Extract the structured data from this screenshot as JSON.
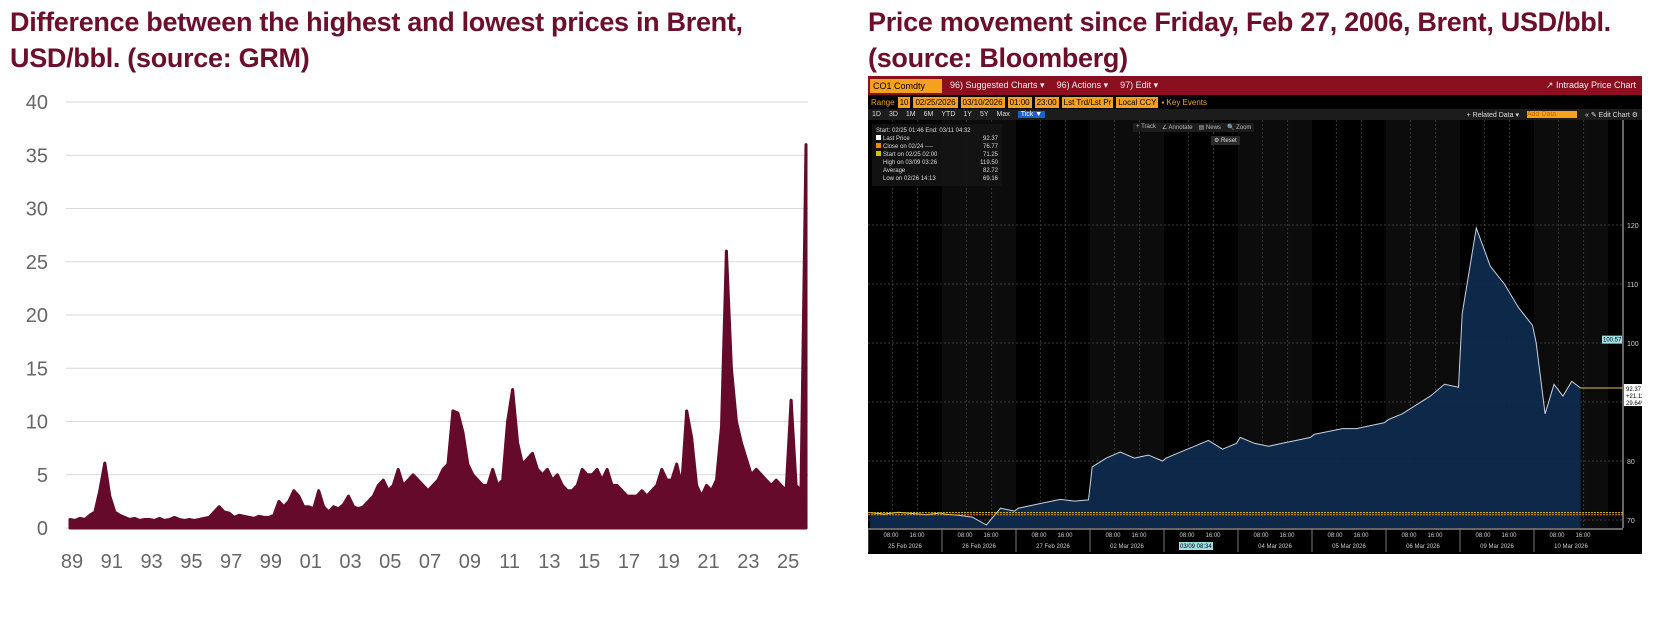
{
  "chart_data": [
    {
      "type": "area",
      "title": "Difference between the highest and lowest prices in Brent, USD/bbl. (source: GRM)",
      "xlabel": "",
      "ylabel": "",
      "ylim": [
        0,
        40
      ],
      "yticks": [
        0,
        5,
        10,
        15,
        20,
        25,
        30,
        35,
        40
      ],
      "xticks": [
        "89",
        "91",
        "93",
        "95",
        "97",
        "99",
        "01",
        "03",
        "05",
        "07",
        "09",
        "11",
        "13",
        "15",
        "17",
        "19",
        "21",
        "23",
        "25"
      ],
      "xrange": [
        1989,
        2026.1
      ],
      "grid": "horizontal",
      "color": "#650a2a",
      "x_start": 1989,
      "x_step": 0.25,
      "values": [
        0.8,
        0.7,
        0.9,
        0.8,
        1.2,
        1.5,
        3.5,
        6.1,
        3.0,
        1.5,
        1.2,
        1.0,
        0.8,
        0.9,
        0.7,
        0.8,
        0.8,
        0.7,
        0.9,
        0.7,
        0.8,
        1.0,
        0.8,
        0.7,
        0.8,
        0.7,
        0.8,
        0.9,
        1.0,
        1.5,
        2.0,
        1.5,
        1.4,
        1.0,
        1.2,
        1.1,
        1.0,
        0.9,
        1.1,
        1.0,
        1.0,
        1.2,
        2.5,
        2.0,
        2.5,
        3.5,
        3.0,
        2.0,
        2.0,
        1.8,
        3.5,
        2.0,
        1.5,
        2.0,
        1.8,
        2.2,
        3.0,
        2.0,
        1.8,
        2.0,
        2.5,
        3.0,
        4.0,
        4.5,
        3.5,
        4.0,
        5.5,
        4.0,
        4.5,
        5.0,
        4.5,
        4.0,
        3.5,
        4.0,
        4.5,
        5.5,
        6.0,
        11.0,
        10.8,
        9.0,
        6.0,
        5.0,
        4.5,
        4.0,
        4.0,
        5.5,
        4.0,
        4.5,
        10.0,
        13.0,
        8.0,
        6.0,
        6.5,
        7.0,
        5.5,
        5.0,
        5.5,
        4.5,
        5.0,
        4.0,
        3.5,
        3.5,
        4.0,
        5.5,
        5.0,
        5.0,
        5.5,
        4.5,
        5.5,
        4.0,
        4.0,
        3.5,
        3.0,
        3.0,
        3.0,
        3.5,
        3.0,
        3.5,
        4.0,
        5.5,
        4.5,
        4.5,
        6.0,
        4.0,
        11.0,
        8.5,
        4.0,
        3.0,
        4.0,
        3.5,
        4.5,
        9.5,
        26.0,
        15.0,
        10.0,
        8.0,
        6.5,
        5.0,
        5.5,
        5.0,
        4.5,
        4.0,
        4.5,
        4.0,
        3.5,
        12.0,
        4.0,
        3.5,
        36.0
      ]
    },
    {
      "type": "line",
      "title": "Price movement since Friday, Feb 27, 2006, Brent, USD/bbl. (source: Bloomberg)",
      "ylim": [
        67,
        122
      ],
      "yticks": [
        70,
        80,
        100,
        110,
        120
      ],
      "categories": [
        "25 Feb 2026",
        "26 Feb 2026",
        "27 Feb 2026",
        "02 Mar 2026",
        "03 Mar 2026",
        "04 Mar 2026",
        "05 Mar 2026",
        "06 Mar 2026",
        "09 Mar 2026",
        "10 Mar 2026"
      ],
      "hour_ticks": [
        "08:00",
        "16:00"
      ],
      "colors": {
        "line": "#c9d2de",
        "fill": "#0f2a4d",
        "last": "#d9c23a"
      },
      "series": [
        [
          71.25,
          71.0,
          71.3,
          71.1,
          70.9,
          71.2
        ],
        [
          71.0,
          70.8,
          70.5,
          69.16,
          72.0,
          71.5
        ],
        [
          72.0,
          72.5,
          73.0,
          73.5,
          73.2,
          73.4
        ],
        [
          79.0,
          80.5,
          81.5,
          80.5,
          81.0,
          80.0
        ],
        [
          80.5,
          81.5,
          82.5,
          83.5,
          82.0,
          83.0
        ],
        [
          84.0,
          83.0,
          82.5,
          83.0,
          83.5,
          84.0
        ],
        [
          84.5,
          85.0,
          85.5,
          85.5,
          86.0,
          86.5
        ],
        [
          87.0,
          88.0,
          89.5,
          91.0,
          93.0,
          92.5
        ],
        [
          105.0,
          119.5,
          113.0,
          110.0,
          106.0,
          103.0
        ],
        [
          100.0,
          88.0,
          93.0,
          91.0,
          93.5,
          92.37
        ]
      ],
      "last_day_fraction": 0.6
    }
  ],
  "bloomberg": {
    "ticker": "CO1 Comdty",
    "menu": [
      "96) Suggested Charts ▾",
      "96) Actions ▾",
      "97) Edit ▾"
    ],
    "right_title": "Intraday Price Chart",
    "range_label": "Range",
    "range_fields": [
      "10",
      "02/25/2026",
      "03/10/2026",
      "01:00",
      "23:00",
      "Lst Trd/Lst Pr",
      "Local CCY"
    ],
    "key_events": "Key Events",
    "periods": [
      "1D",
      "3D",
      "1M",
      "6M",
      "YTD",
      "1Y",
      "5Y",
      "Max"
    ],
    "tick": "Tick ▼",
    "related": "+ Related Data ▾",
    "add_data": "Add Data",
    "edit_chart": "« ✎ Edit Chart ⚙",
    "tools": [
      "+ Track",
      "∠ Annotate",
      "▤ News",
      "🔍 Zoom"
    ],
    "reset": "⚙ Reset",
    "info_header": "Start: 02/25 01:46  End: 03/11 04:32",
    "info_rows": [
      {
        "label": "Last Price",
        "value": "92.37",
        "color": "#ffffff"
      },
      {
        "label": "Close on 02/24 ----",
        "value": "76.77",
        "color": "#f08a00"
      },
      {
        "label": "Start on 02/25 02:00",
        "value": "71.25",
        "color": "#d8c000"
      },
      {
        "label": "High on 03/09 03:26",
        "value": "119.50",
        "color": ""
      },
      {
        "label": "Average",
        "value": "82.72",
        "color": ""
      },
      {
        "label": "Low on 02/26 14:13",
        "value": "69.16",
        "color": ""
      }
    ],
    "axis_box": [
      "92.37",
      "+21.12",
      "29.64%"
    ],
    "cursor_value": "100.57",
    "cursor_date": "03/09 08:34"
  }
}
